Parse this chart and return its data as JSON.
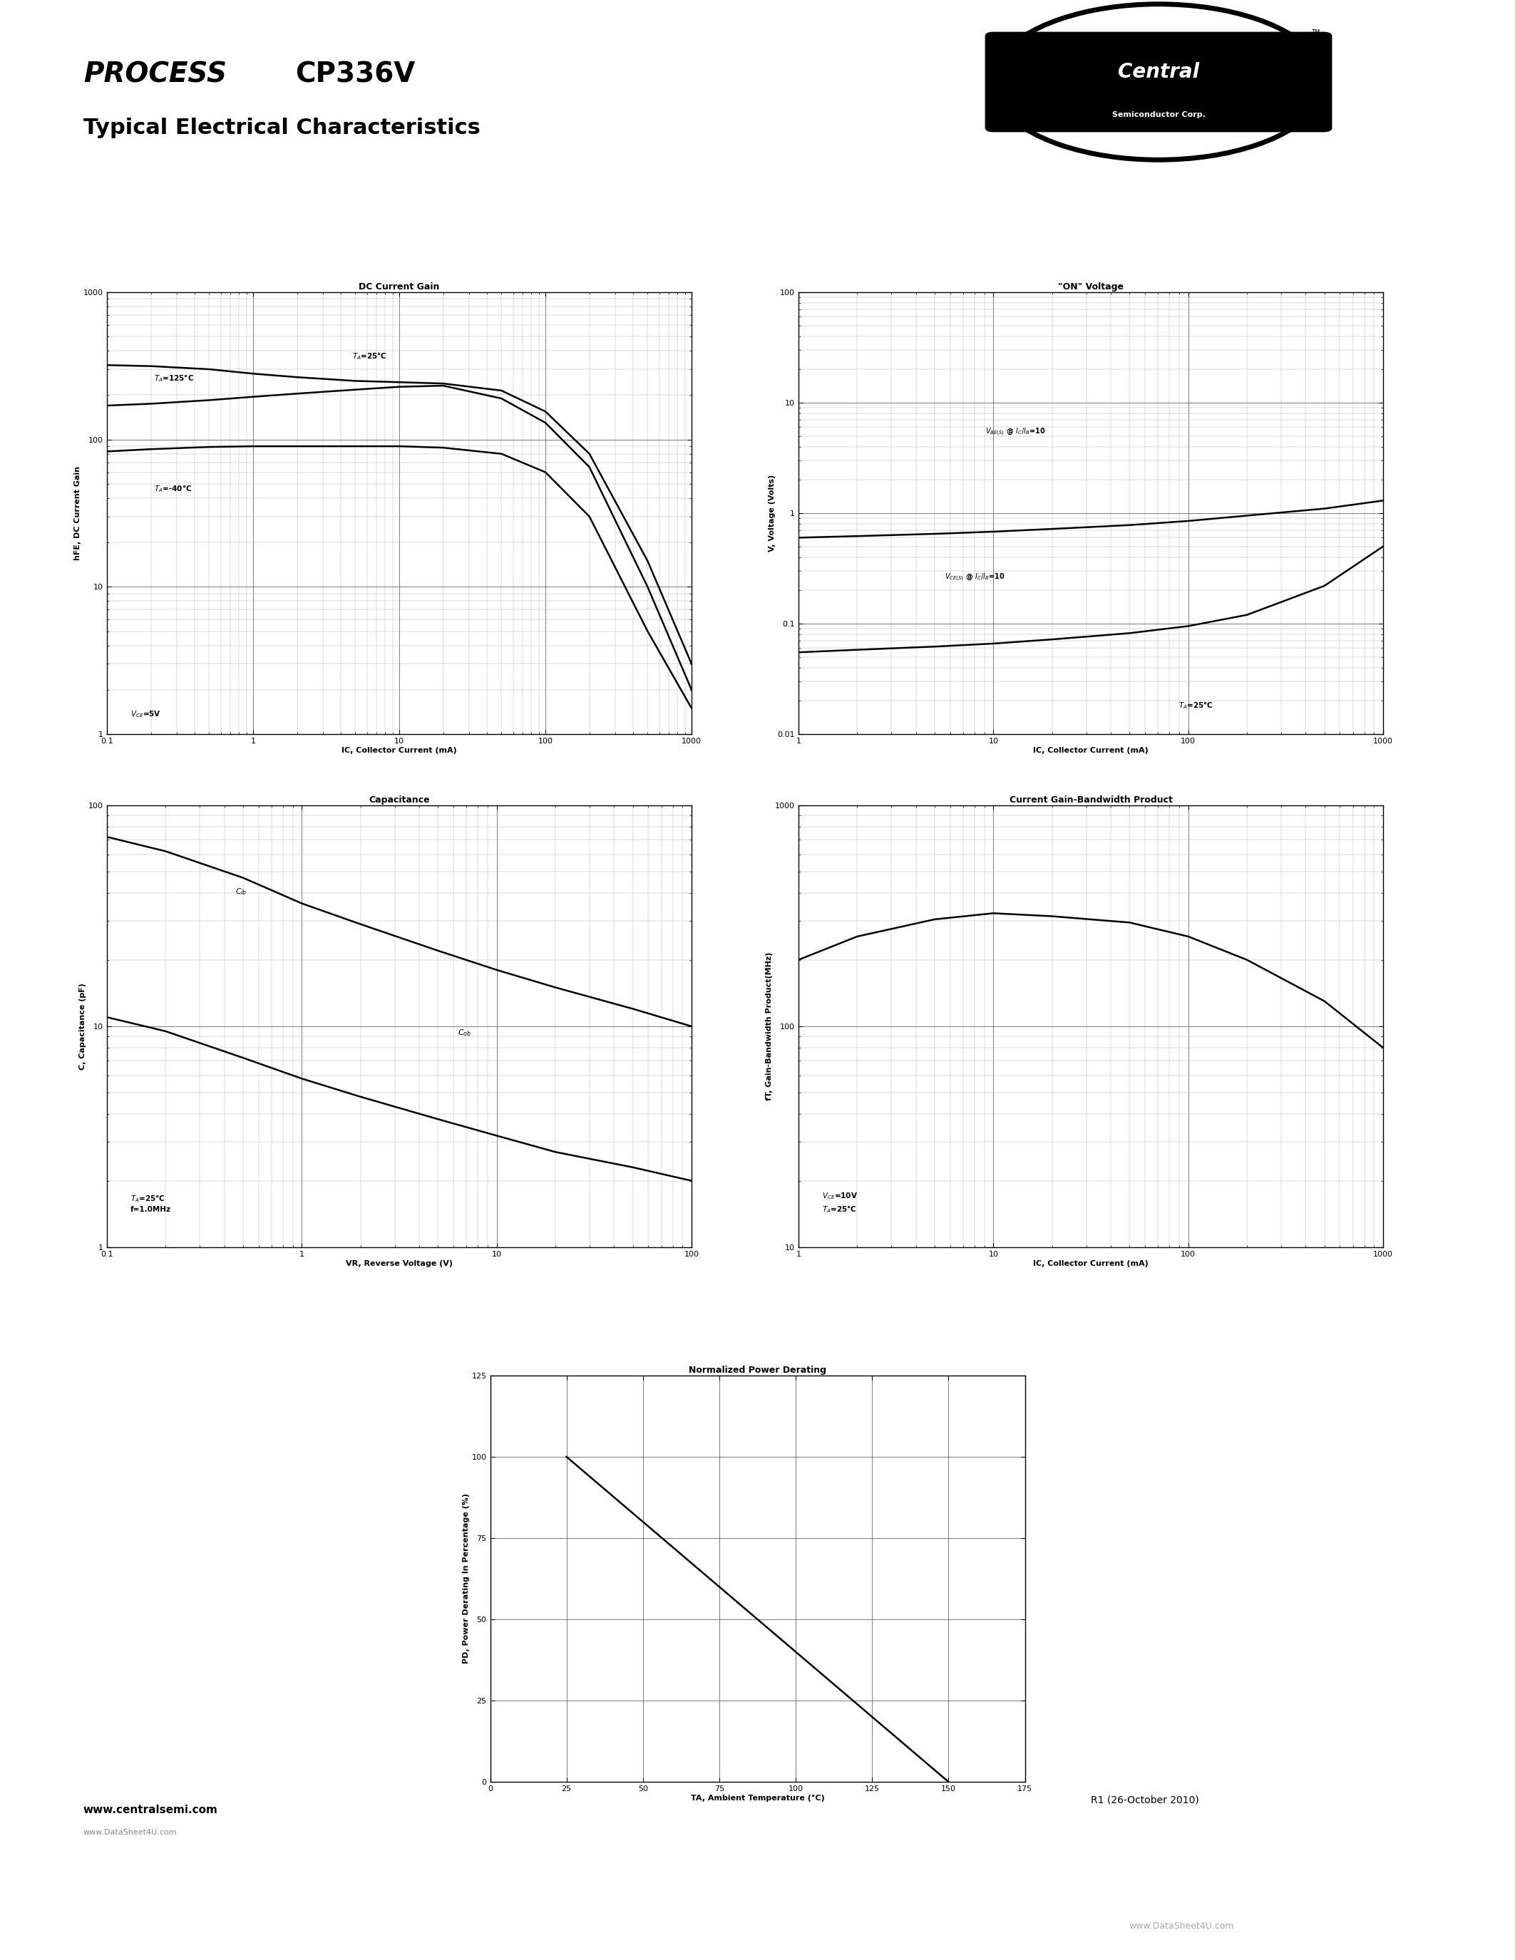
{
  "page_bg": "#ffffff",
  "title_process": "PROCESS",
  "title_part": "CP336V",
  "title_sub": "Typical Electrical Characteristics",
  "plots": {
    "dc_gain": {
      "title": "DC Current Gain",
      "xlabel": "IC, Collector Current (mA)",
      "ylabel": "hFE, DC Current Gain",
      "xmin": 0.1,
      "xmax": 1000,
      "ymin": 1,
      "ymax": 1000,
      "xticks": [
        0.1,
        1,
        10,
        100,
        1000
      ],
      "yticks": [
        1,
        10,
        100,
        1000
      ],
      "annotation_vce": "VCE=5V",
      "curves": {
        "T125": {
          "label": "TA=125°C",
          "x": [
            0.1,
            0.2,
            0.5,
            1,
            2,
            5,
            10,
            20,
            50,
            100,
            200,
            500,
            1000
          ],
          "y": [
            320,
            315,
            300,
            280,
            265,
            250,
            245,
            240,
            215,
            155,
            80,
            15,
            3
          ]
        },
        "T25": {
          "label": "TA=25°C",
          "x": [
            0.1,
            0.2,
            0.5,
            1,
            2,
            5,
            10,
            20,
            50,
            100,
            200,
            500,
            1000
          ],
          "y": [
            170,
            175,
            185,
            195,
            205,
            218,
            228,
            232,
            190,
            130,
            65,
            10,
            2
          ]
        },
        "Tn40": {
          "label": "TA=-40°C",
          "x": [
            0.1,
            0.2,
            0.5,
            1,
            2,
            5,
            10,
            20,
            50,
            100,
            200,
            500,
            1000
          ],
          "y": [
            83,
            86,
            89,
            90,
            90,
            90,
            90,
            88,
            80,
            60,
            30,
            5,
            1.5
          ]
        }
      }
    },
    "on_voltage": {
      "title": "\"ON\" Voltage",
      "xlabel": "IC, Collector Current (mA)",
      "ylabel": "V, Voltage (Volts)",
      "xmin": 1,
      "xmax": 1000,
      "ymin": 0.01,
      "ymax": 100,
      "xticks": [
        1,
        10,
        100,
        1000
      ],
      "yticks": [
        0.01,
        0.1,
        1,
        10,
        100
      ],
      "annotation_ta": "TA=25°C",
      "curves": {
        "VBE": {
          "label": "VBE(S) @ IC/IB=10",
          "x": [
            1,
            2,
            5,
            10,
            20,
            50,
            100,
            200,
            500,
            1000
          ],
          "y": [
            0.6,
            0.62,
            0.65,
            0.68,
            0.72,
            0.78,
            0.85,
            0.95,
            1.1,
            1.3
          ]
        },
        "VCE": {
          "label": "VCE(S) @ IC/IB=10",
          "x": [
            1,
            2,
            5,
            10,
            20,
            50,
            100,
            200,
            500,
            1000
          ],
          "y": [
            0.055,
            0.058,
            0.062,
            0.066,
            0.072,
            0.082,
            0.095,
            0.12,
            0.22,
            0.5
          ]
        }
      }
    },
    "capacitance": {
      "title": "Capacitance",
      "xlabel": "VR, Reverse Voltage (V)",
      "ylabel": "C, Capacitance (pF)",
      "xmin": 0.1,
      "xmax": 100,
      "ymin": 1,
      "ymax": 100,
      "xticks": [
        0.1,
        1,
        10,
        100
      ],
      "yticks": [
        1,
        10,
        100
      ],
      "annotation": "TA=25°C\nf=1.0MHz",
      "curves": {
        "Cib": {
          "label": "Cib",
          "x": [
            0.1,
            0.2,
            0.5,
            1,
            2,
            5,
            10,
            20,
            50,
            100
          ],
          "y": [
            72,
            62,
            47,
            36,
            29,
            22,
            18,
            15,
            12,
            10
          ]
        },
        "Cob": {
          "label": "Cob",
          "x": [
            0.1,
            0.2,
            0.5,
            1,
            2,
            5,
            10,
            20,
            50,
            100
          ],
          "y": [
            11,
            9.5,
            7.2,
            5.8,
            4.8,
            3.8,
            3.2,
            2.7,
            2.3,
            2.0
          ]
        }
      }
    },
    "bandwidth": {
      "title": "Current Gain-Bandwidth Product",
      "xlabel": "IC, Collector Current (mA)",
      "ylabel": "fT, Gain-Bandwidth Product(MHz)",
      "xmin": 1,
      "xmax": 1000,
      "ymin": 10,
      "ymax": 1000,
      "xticks": [
        1,
        10,
        100,
        1000
      ],
      "yticks": [
        10,
        100,
        1000
      ],
      "annotation": "VCE=10V\nTA=25°C",
      "curves": {
        "fT": {
          "x": [
            1,
            2,
            5,
            10,
            20,
            50,
            100,
            200,
            500,
            1000
          ],
          "y": [
            200,
            255,
            305,
            325,
            315,
            295,
            255,
            200,
            130,
            80
          ]
        }
      }
    },
    "power_derating": {
      "title": "Normalized Power Derating",
      "xlabel": "TA, Ambient Temperature (°C)",
      "ylabel": "PD, Power Derating In Percentage (%)",
      "xmin": 0,
      "xmax": 175,
      "ymin": 0,
      "ymax": 125,
      "xticks": [
        0,
        25,
        50,
        75,
        100,
        125,
        150,
        175
      ],
      "yticks": [
        0,
        25,
        50,
        75,
        100,
        125
      ],
      "curve": {
        "x": [
          25,
          150
        ],
        "y": [
          100,
          0
        ]
      }
    }
  },
  "footer_url": "www.centralsemi.com",
  "revision": "R1 (26-October 2010)",
  "watermark_top": "www.DataSheet4U.com",
  "watermark_bottom": "www.DataSheet4U.com"
}
